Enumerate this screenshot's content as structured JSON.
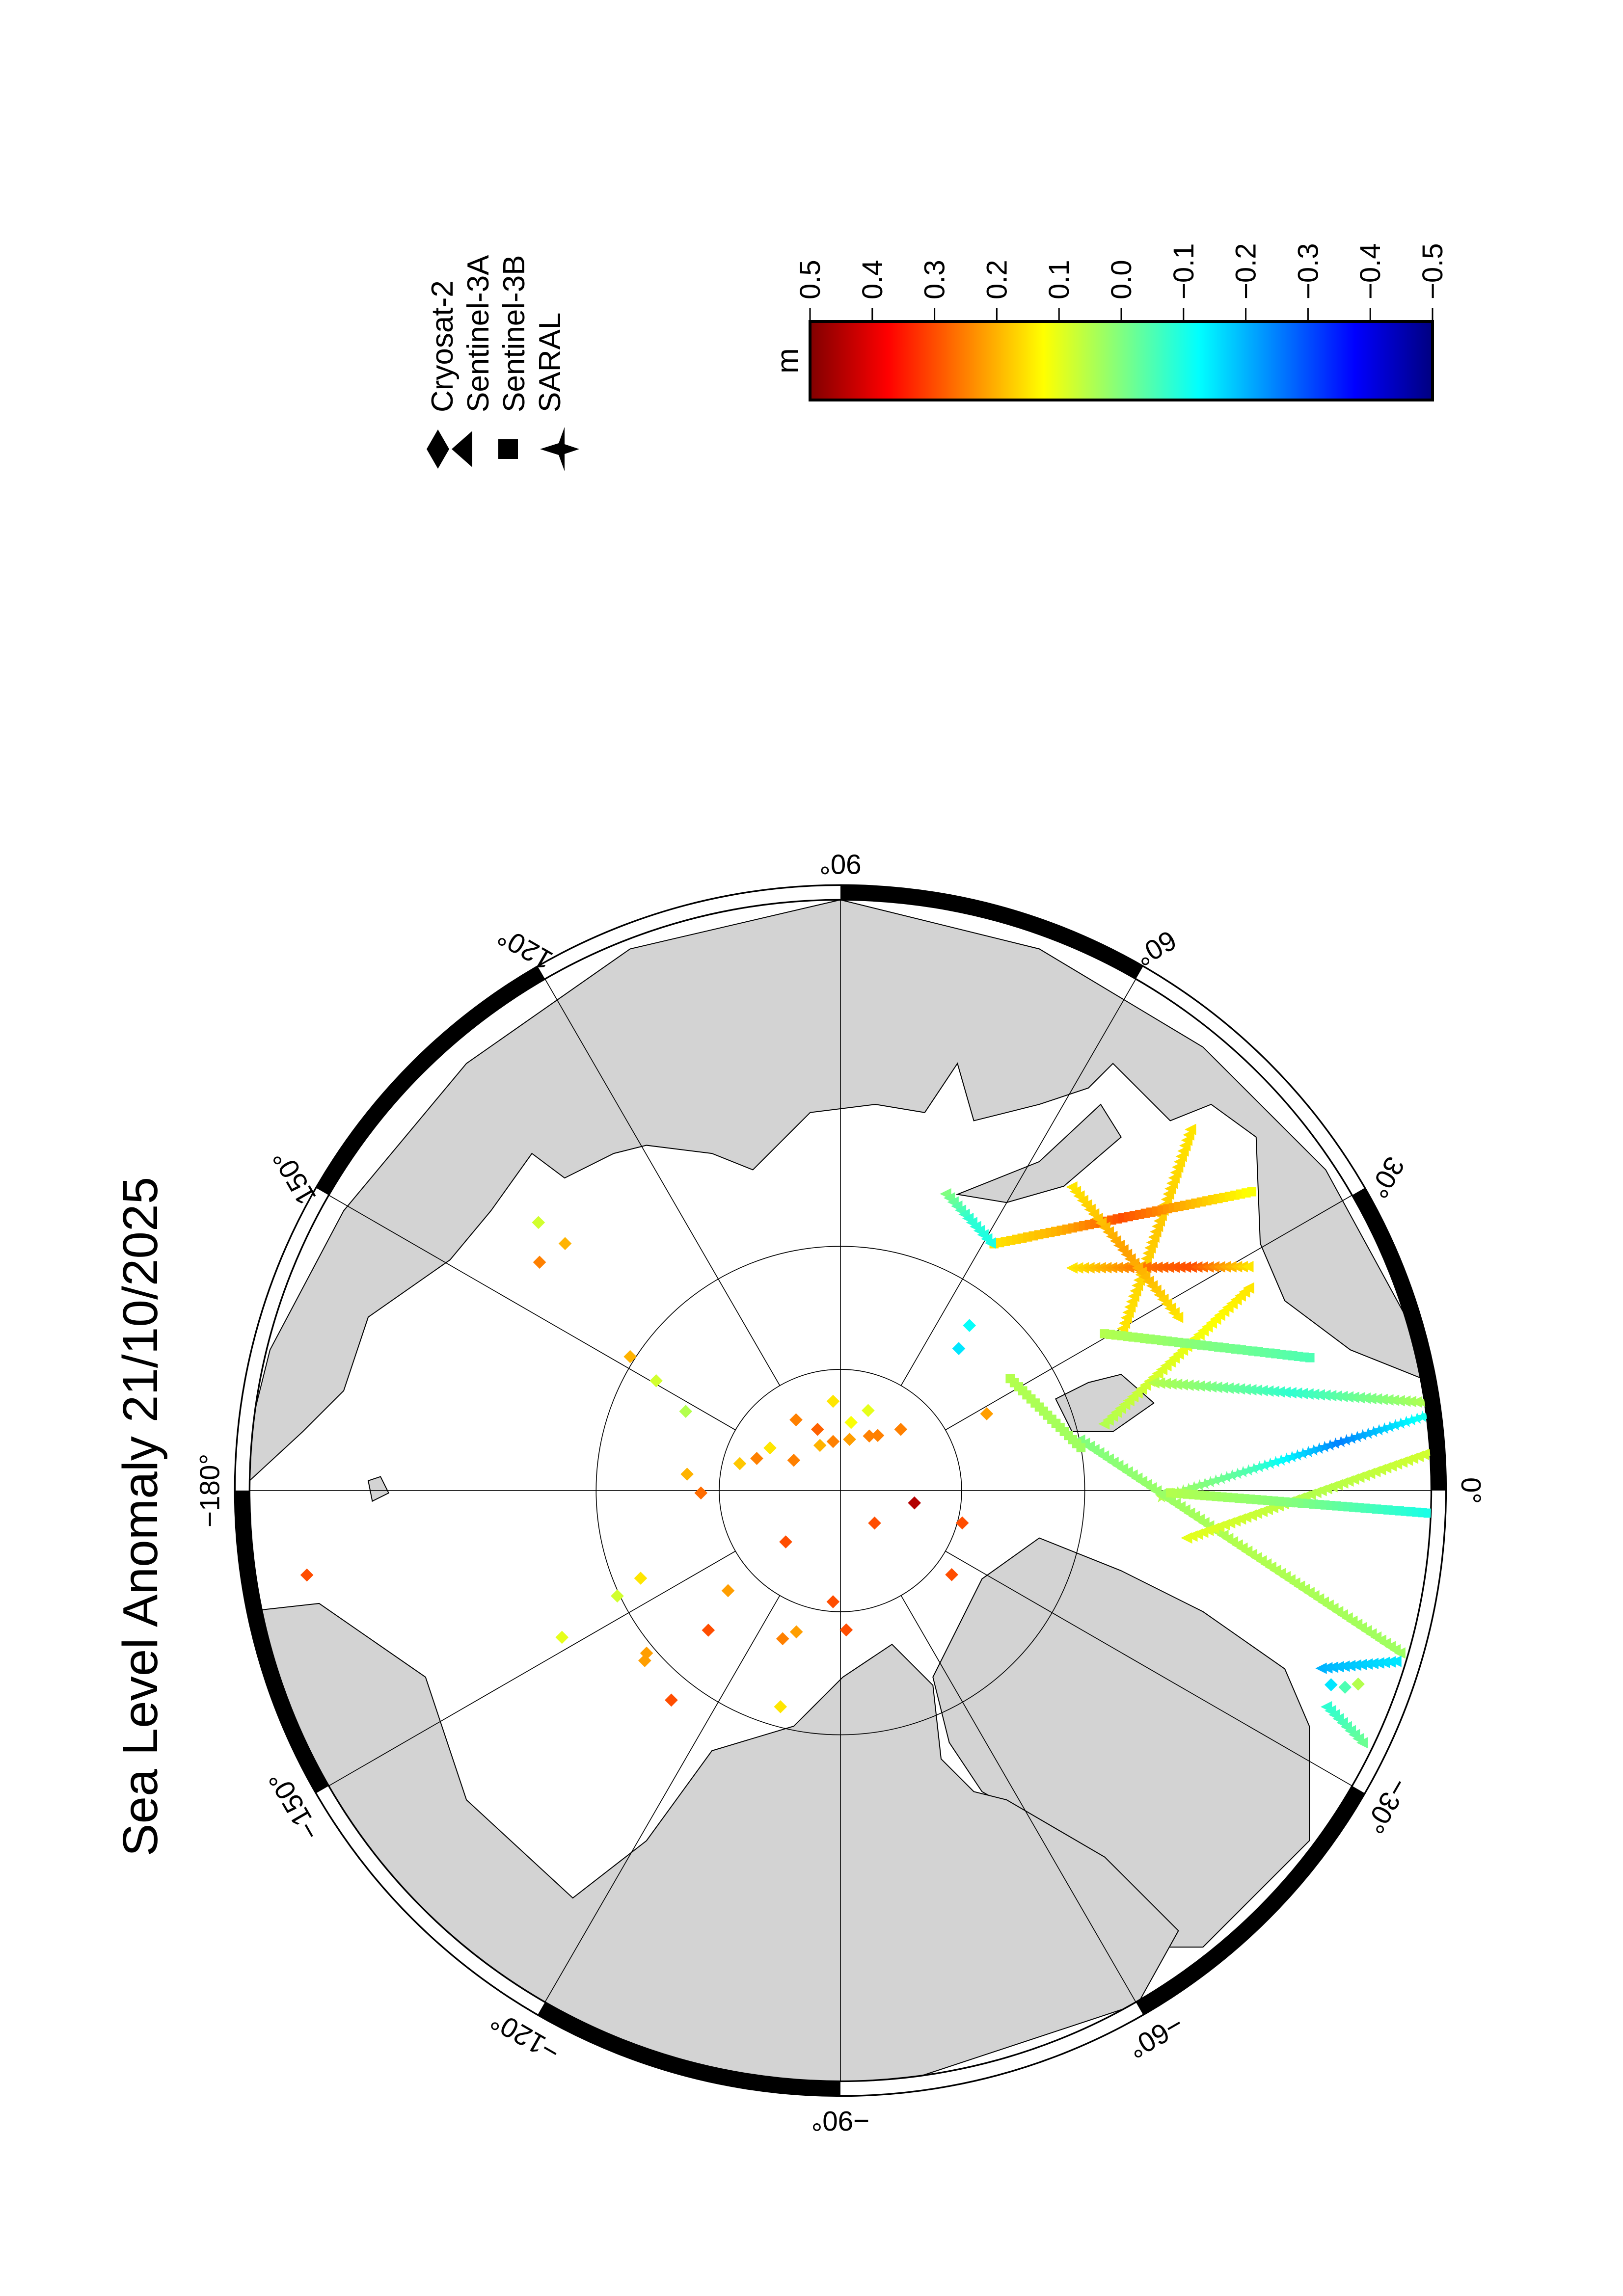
{
  "title": "Sea Level Anomaly 21/10/2025",
  "legend": {
    "items": [
      {
        "label": "Cryosat-2",
        "symbol": "diamond"
      },
      {
        "label": "Sentinel-3A",
        "symbol": "triangle"
      },
      {
        "label": "Sentinel-3B",
        "symbol": "square"
      },
      {
        "label": "SARAL",
        "symbol": "star"
      }
    ]
  },
  "colorbar": {
    "unit": "m",
    "ticks": [
      "0.5",
      "0.4",
      "0.3",
      "0.2",
      "0.1",
      "0.0",
      "−0.1",
      "−0.2",
      "−0.3",
      "−0.4",
      "−0.5"
    ],
    "range": [
      -0.5,
      0.5
    ],
    "colormap": "jet",
    "colors": [
      "#800000",
      "#ff0000",
      "#ff8000",
      "#ffff00",
      "#80ff80",
      "#00ffff",
      "#0080ff",
      "#0000ff",
      "#000080"
    ]
  },
  "map": {
    "projection": "north polar stereographic",
    "graticule_labels": [
      {
        "lon": 90,
        "text": "90°"
      },
      {
        "lon": 60,
        "text": "60°"
      },
      {
        "lon": 30,
        "text": "30°"
      },
      {
        "lon": 0,
        "text": "0°"
      },
      {
        "lon": -30,
        "text": "−30°"
      },
      {
        "lon": -60,
        "text": "−60°"
      },
      {
        "lon": -90,
        "text": "−90°"
      },
      {
        "lon": -120,
        "text": "−120°"
      },
      {
        "lon": -150,
        "text": "−150°"
      },
      {
        "lon": 180,
        "text": "−180°"
      },
      {
        "lon": 150,
        "text": "150°"
      },
      {
        "lon": 120,
        "text": "120°"
      }
    ],
    "latitude_circles": [
      80,
      70
    ],
    "land_color": "#d3d3d3"
  },
  "chart_data": {
    "type": "scatter",
    "title": "Sea Level Anomaly 21/10/2025",
    "value_unit": "m",
    "value_range": [
      -0.5,
      0.5
    ],
    "points": [
      {
        "lon": -9.5,
        "lat": 83.8,
        "value": 0.45,
        "mission": "Cryosat-2"
      },
      {
        "lon": -43.6,
        "lat": 86.1,
        "value": 0.3,
        "mission": "Cryosat-2"
      },
      {
        "lon": -136.8,
        "lat": 83.8,
        "value": 0.3,
        "mission": "Cryosat-2"
      },
      {
        "lon": -93.8,
        "lat": 80.8,
        "value": 0.3,
        "mission": "Cryosat-2"
      },
      {
        "lon": -87.6,
        "lat": 78.5,
        "value": 0.3,
        "mission": "Cryosat-2"
      },
      {
        "lon": -133.4,
        "lat": 74.2,
        "value": 0.3,
        "mission": "Cryosat-2"
      },
      {
        "lon": -128.9,
        "lat": 68.0,
        "value": 0.3,
        "mission": "Cryosat-2"
      },
      {
        "lon": -171.0,
        "lat": 47.4,
        "value": 0.3,
        "mission": "Cryosat-2"
      },
      {
        "lon": -179.0,
        "lat": 78.5,
        "value": 0.27,
        "mission": "Cryosat-2"
      },
      {
        "lon": 173.9,
        "lat": 77.3,
        "value": 0.2,
        "mission": "Cryosat-2"
      },
      {
        "lon": -156.3,
        "lat": 72.1,
        "value": 0.15,
        "mission": "Cryosat-2"
      },
      {
        "lon": -154.7,
        "lat": 69.8,
        "value": 0.08,
        "mission": "Cryosat-2"
      },
      {
        "lon": -152.2,
        "lat": 64.4,
        "value": 0.1,
        "mission": "Cryosat-2"
      },
      {
        "lon": -140.0,
        "lat": 69.3,
        "value": 0.22,
        "mission": "Cryosat-2"
      },
      {
        "lon": -139.0,
        "lat": 68.8,
        "value": 0.22,
        "mission": "Cryosat-2"
      },
      {
        "lon": -138.3,
        "lat": 77.6,
        "value": 0.22,
        "mission": "Cryosat-2"
      },
      {
        "lon": -111.3,
        "lat": 76.9,
        "value": 0.25,
        "mission": "Cryosat-2"
      },
      {
        "lon": -107.3,
        "lat": 77.8,
        "value": 0.22,
        "mission": "Cryosat-2"
      },
      {
        "lon": -105.5,
        "lat": 71.6,
        "value": 0.15,
        "mission": "Cryosat-2"
      },
      {
        "lon": -37.1,
        "lat": 78.5,
        "value": 0.3,
        "mission": "Cryosat-2"
      },
      {
        "lon": -14.9,
        "lat": 79.6,
        "value": 0.3,
        "mission": "Cryosat-2"
      },
      {
        "lon": 27.7,
        "lat": 76.4,
        "value": 0.22,
        "mission": "Cryosat-2"
      },
      {
        "lon": 94.7,
        "lat": 82.6,
        "value": 0.15,
        "mission": "Cryosat-2"
      },
      {
        "lon": 70.9,
        "lat": 83.0,
        "value": 0.1,
        "mission": "Cryosat-2"
      },
      {
        "lon": 81.1,
        "lat": 84.3,
        "value": 0.12,
        "mission": "Cryosat-2"
      },
      {
        "lon": 122.1,
        "lat": 83.1,
        "value": 0.25,
        "mission": "Cryosat-2"
      },
      {
        "lon": 110.5,
        "lat": 84.6,
        "value": 0.28,
        "mission": "Cryosat-2"
      },
      {
        "lon": 98.5,
        "lat": 85.9,
        "value": 0.25,
        "mission": "Cryosat-2"
      },
      {
        "lon": 79.9,
        "lat": 85.7,
        "value": 0.22,
        "mission": "Cryosat-2"
      },
      {
        "lon": 62.1,
        "lat": 84.9,
        "value": 0.25,
        "mission": "Cryosat-2"
      },
      {
        "lon": 55.9,
        "lat": 84.5,
        "value": 0.25,
        "mission": "Cryosat-2"
      },
      {
        "lon": 45.4,
        "lat": 82.9,
        "value": 0.25,
        "mission": "Cryosat-2"
      },
      {
        "lon": 114.4,
        "lat": 85.9,
        "value": 0.2,
        "mission": "Cryosat-2"
      },
      {
        "lon": 147.0,
        "lat": 85.4,
        "value": 0.25,
        "mission": "Cryosat-2"
      },
      {
        "lon": 148.8,
        "lat": 83.2,
        "value": 0.15,
        "mission": "Cryosat-2"
      },
      {
        "lon": 159.0,
        "lat": 82.6,
        "value": 0.25,
        "mission": "Cryosat-2"
      },
      {
        "lon": 165.0,
        "lat": 81.4,
        "value": 0.18,
        "mission": "Cryosat-2"
      },
      {
        "lon": 147.5,
        "lat": 69.6,
        "value": 0.2,
        "mission": "Cryosat-2"
      },
      {
        "lon": 149.2,
        "lat": 72.4,
        "value": 0.08,
        "mission": "Cryosat-2"
      },
      {
        "lon": 152.9,
        "lat": 75.7,
        "value": 0.05,
        "mission": "Cryosat-2"
      },
      {
        "lon": 138.1,
        "lat": 60.1,
        "value": 0.2,
        "mission": "Cryosat-2"
      },
      {
        "lon": 142.8,
        "lat": 59.5,
        "value": 0.25,
        "mission": "Cryosat-2"
      },
      {
        "lon": 138.4,
        "lat": 57.5,
        "value": 0.08,
        "mission": "Cryosat-2"
      },
      {
        "lon": 50.2,
        "lat": 74.8,
        "value": -0.15,
        "mission": "Cryosat-2"
      },
      {
        "lon": 52.0,
        "lat": 72.8,
        "value": -0.12,
        "mission": "Cryosat-2"
      },
      {
        "lon": -21.6,
        "lat": 48.3,
        "value": -0.15,
        "mission": "Cryosat-2"
      },
      {
        "lon": -21.3,
        "lat": 47.3,
        "value": -0.05,
        "mission": "Cryosat-2"
      },
      {
        "lon": -20.5,
        "lat": 46.5,
        "value": 0.05,
        "mission": "Cryosat-2"
      }
    ],
    "tracks": [
      {
        "mission": "Sentinel-3A",
        "from": [
          45.9,
          50.1
        ],
        "to": [
          29.2,
          63.9
        ],
        "values": [
          0.15,
          0.18,
          0.15
        ]
      },
      {
        "mission": "Sentinel-3B",
        "from": [
          58.1,
          66.3
        ],
        "to": [
          36.0,
          49.7
        ],
        "values": [
          0.15,
          0.2,
          0.3,
          0.2,
          0.12
        ]
      },
      {
        "mission": "Sentinel-3A",
        "from": [
          43.9,
          63.9
        ],
        "to": [
          28.8,
          52.9
        ],
        "values": [
          0.15,
          0.25,
          0.3,
          0.15
        ]
      },
      {
        "mission": "Sentinel-3A",
        "from": [
          52.7,
          59.2
        ],
        "to": [
          27.2,
          59.4
        ],
        "values": [
          0.15,
          0.22,
          0.15
        ]
      },
      {
        "mission": "Sentinel-3A",
        "from": [
          26.4,
          53.6
        ],
        "to": [
          14.2,
          67.8
        ],
        "values": [
          0.15,
          0.1,
          0.05
        ]
      },
      {
        "mission": "Sentinel-3B",
        "from": [
          30.7,
          65.0
        ],
        "to": [
          15.8,
          51.2
        ],
        "values": [
          0.05,
          0.0,
          -0.05
        ]
      },
      {
        "mission": "Sentinel-3A",
        "from": [
          19.0,
          63.1
        ],
        "to": [
          8.5,
          43.6
        ],
        "values": [
          0.05,
          -0.08,
          0.05
        ]
      },
      {
        "mission": "SARAL",
        "from": [
          -1.2,
          63.9
        ],
        "to": [
          7.3,
          43.7
        ],
        "values": [
          0.05,
          -0.05,
          -0.25,
          -0.1
        ]
      },
      {
        "mission": "Sentinel-3A",
        "from": [
          11.9,
          70.0
        ],
        "to": [
          -16.2,
          44.4
        ],
        "values": [
          0.0,
          0.05,
          0.03
        ]
      },
      {
        "mission": "Sentinel-3A",
        "from": [
          -7.8,
          61.7
        ],
        "to": [
          3.7,
          43.9
        ],
        "values": [
          0.1,
          0.05,
          0.08
        ]
      },
      {
        "mission": "Sentinel-3B",
        "from": [
          -0.4,
          63.2
        ],
        "to": [
          -2.2,
          44.0
        ],
        "values": [
          0.05,
          0.0,
          -0.1
        ]
      },
      {
        "mission": "Sentinel-3A",
        "from": [
          70.5,
          64.4
        ],
        "to": [
          58.8,
          66.4
        ],
        "values": [
          0.0,
          -0.08,
          -0.1
        ]
      },
      {
        "mission": "Sentinel-3A",
        "from": [
          -20.3,
          49.4
        ],
        "to": [
          -17.1,
          44.5
        ],
        "values": [
          -0.2,
          -0.15
        ]
      },
      {
        "mission": "Sentinel-3A",
        "from": [
          -24.0,
          48.0
        ],
        "to": [
          -25.8,
          44.6
        ],
        "values": [
          -0.08,
          -0.02
        ]
      },
      {
        "mission": "Sentinel-3B",
        "from": [
          33.4,
          73.3
        ],
        "to": [
          10.1,
          70.0
        ],
        "values": [
          0.05,
          0.03
        ]
      }
    ]
  }
}
